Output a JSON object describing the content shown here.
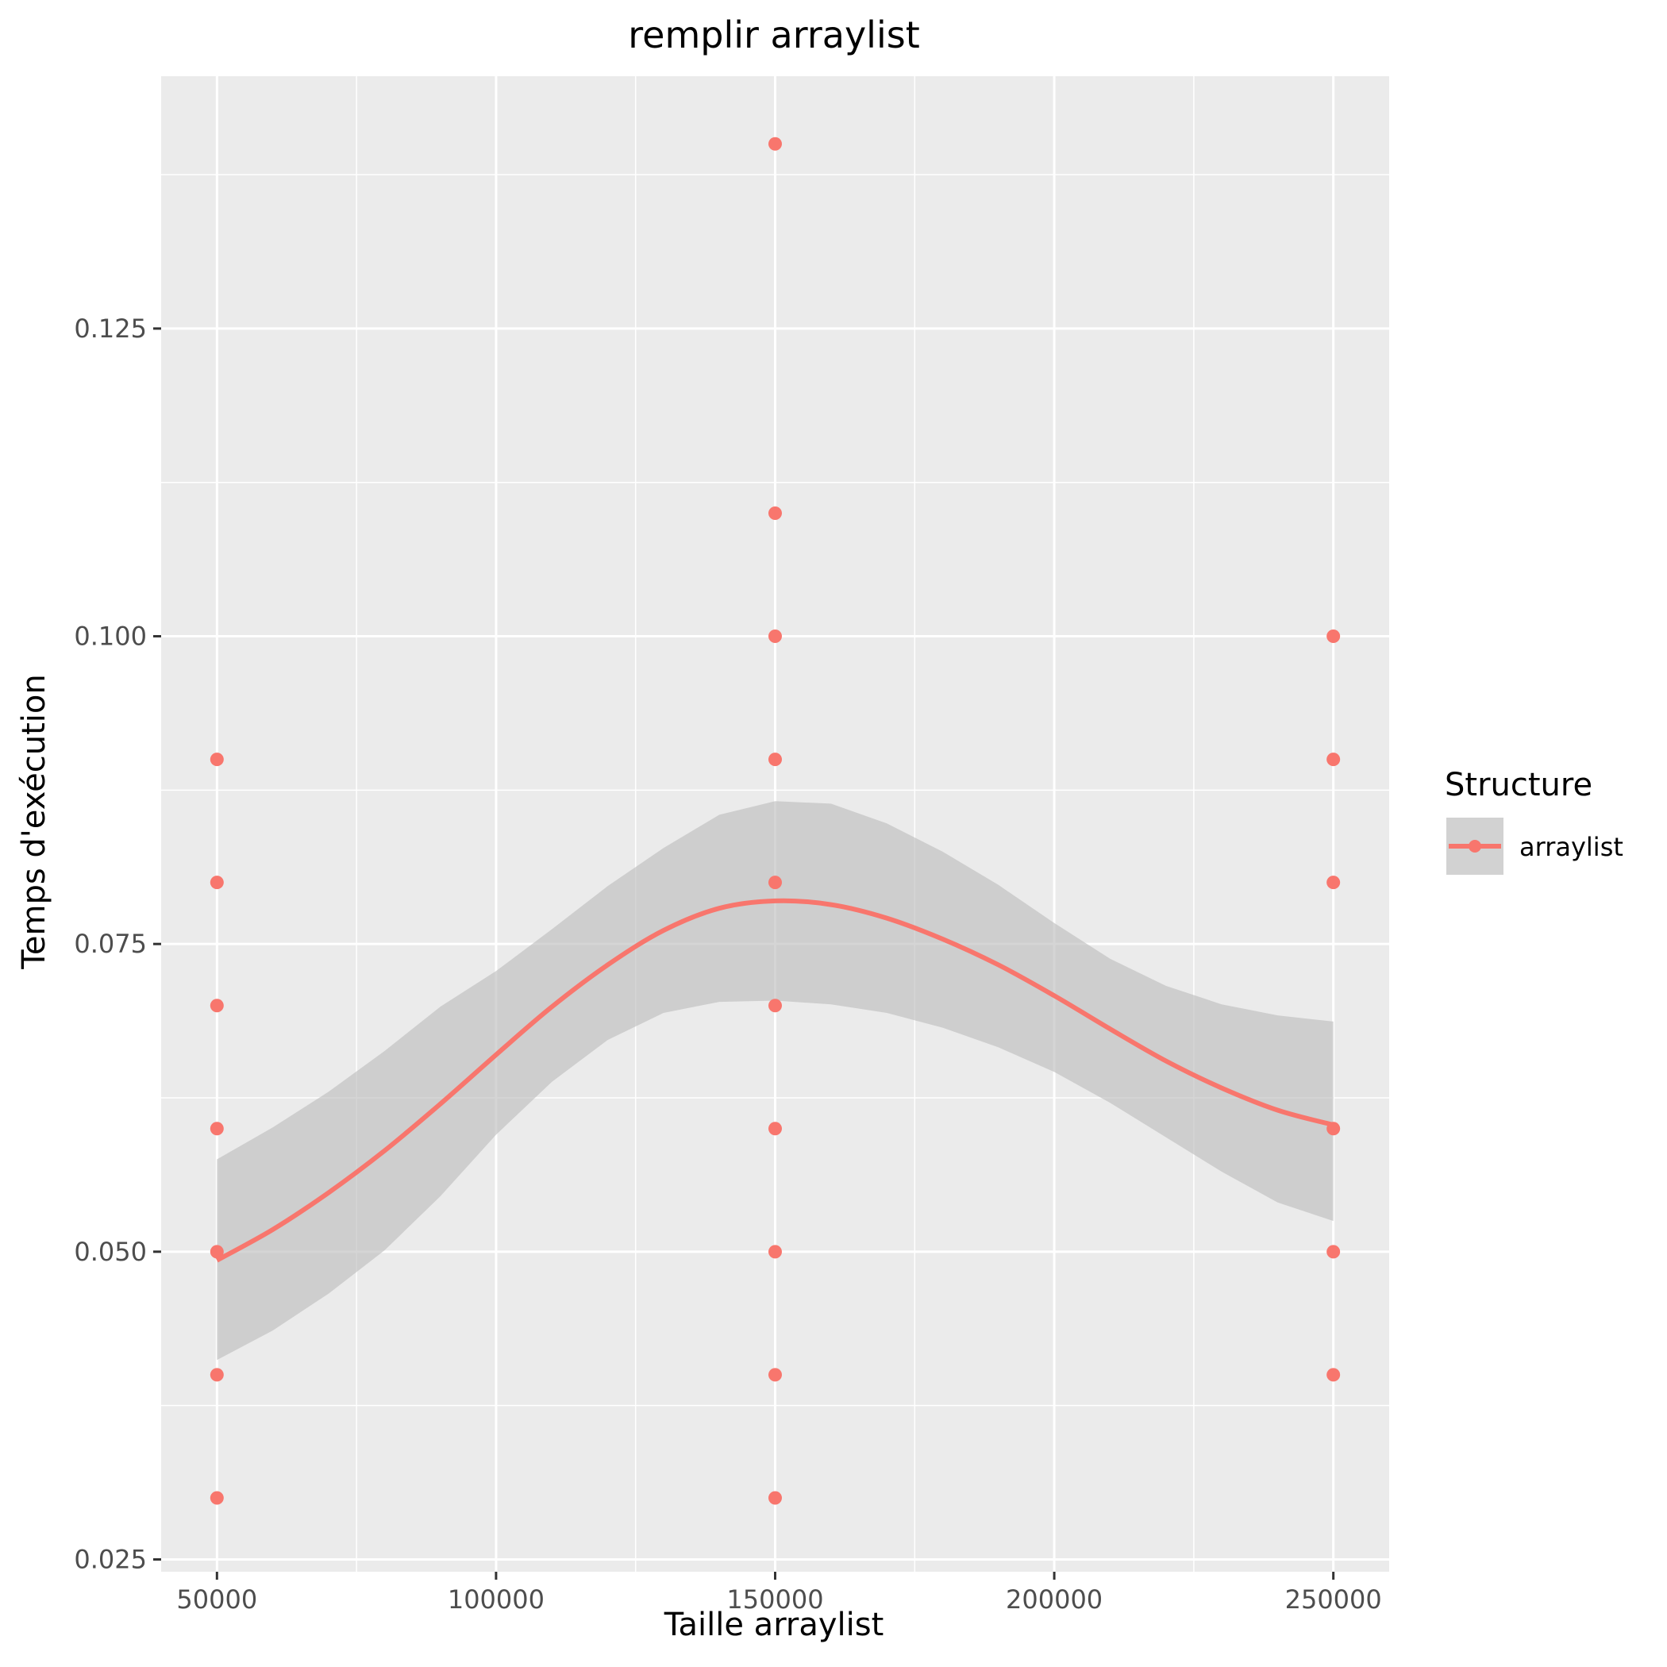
{
  "chart_data": {
    "type": "scatter",
    "title": "remplir arraylist",
    "xlabel": "Taille arraylist",
    "ylabel": "Temps d'exécution",
    "xlim": [
      40000,
      260000
    ],
    "ylim": [
      0.024,
      0.1455
    ],
    "x_ticks": [
      50000,
      100000,
      150000,
      200000,
      250000
    ],
    "x_tick_labels": [
      "50000",
      "100000",
      "150000",
      "200000",
      "250000"
    ],
    "y_ticks": [
      0.025,
      0.05,
      0.075,
      0.1,
      0.125
    ],
    "y_tick_labels": [
      "0.025",
      "0.050",
      "0.075",
      "0.100",
      "0.125"
    ],
    "grid": true,
    "legend": {
      "title": "Structure",
      "position": "right",
      "entries": [
        "arraylist"
      ]
    },
    "colors": {
      "series": "#F8766D",
      "panel": "#EBEBEB",
      "grid": "#FFFFFF",
      "ribbon": "#BEBEBE"
    },
    "series": [
      {
        "name": "arraylist",
        "points": [
          {
            "x": 50000,
            "y": 0.09
          },
          {
            "x": 50000,
            "y": 0.08
          },
          {
            "x": 50000,
            "y": 0.07
          },
          {
            "x": 50000,
            "y": 0.06
          },
          {
            "x": 50000,
            "y": 0.05
          },
          {
            "x": 50000,
            "y": 0.04
          },
          {
            "x": 50000,
            "y": 0.03
          },
          {
            "x": 150000,
            "y": 0.14
          },
          {
            "x": 150000,
            "y": 0.11
          },
          {
            "x": 150000,
            "y": 0.1
          },
          {
            "x": 150000,
            "y": 0.09
          },
          {
            "x": 150000,
            "y": 0.08
          },
          {
            "x": 150000,
            "y": 0.07
          },
          {
            "x": 150000,
            "y": 0.06
          },
          {
            "x": 150000,
            "y": 0.05
          },
          {
            "x": 150000,
            "y": 0.04
          },
          {
            "x": 150000,
            "y": 0.03
          },
          {
            "x": 250000,
            "y": 0.1
          },
          {
            "x": 250000,
            "y": 0.09
          },
          {
            "x": 250000,
            "y": 0.08
          },
          {
            "x": 250000,
            "y": 0.06
          },
          {
            "x": 250000,
            "y": 0.05
          },
          {
            "x": 250000,
            "y": 0.04
          }
        ],
        "smooth": {
          "x": [
            50000,
            60000,
            70000,
            80000,
            90000,
            100000,
            110000,
            120000,
            130000,
            140000,
            150000,
            160000,
            170000,
            180000,
            190000,
            200000,
            210000,
            220000,
            230000,
            240000,
            250000
          ],
          "y": [
            0.0493,
            0.0518,
            0.0548,
            0.0582,
            0.062,
            0.066,
            0.0699,
            0.0733,
            0.0761,
            0.0779,
            0.0785,
            0.0782,
            0.0771,
            0.0754,
            0.0733,
            0.0708,
            0.0681,
            0.0655,
            0.0633,
            0.0615,
            0.0603
          ],
          "lower": [
            0.0412,
            0.0436,
            0.0466,
            0.0501,
            0.0545,
            0.0595,
            0.0638,
            0.0672,
            0.0694,
            0.0703,
            0.0704,
            0.0701,
            0.0694,
            0.0682,
            0.0666,
            0.0646,
            0.0621,
            0.0593,
            0.0565,
            0.054,
            0.0525
          ],
          "upper": [
            0.0575,
            0.0601,
            0.063,
            0.0663,
            0.0699,
            0.0728,
            0.0762,
            0.0797,
            0.0828,
            0.0855,
            0.0866,
            0.0864,
            0.0848,
            0.0825,
            0.0798,
            0.0767,
            0.0738,
            0.0716,
            0.0701,
            0.0692,
            0.0687
          ]
        }
      }
    ]
  }
}
